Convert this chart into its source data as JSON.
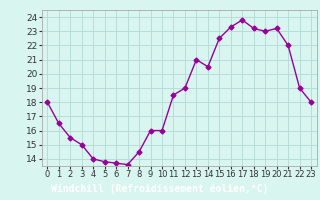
{
  "hours": [
    0,
    1,
    2,
    3,
    4,
    5,
    6,
    7,
    8,
    9,
    10,
    11,
    12,
    13,
    14,
    15,
    16,
    17,
    18,
    19,
    20,
    21,
    22,
    23
  ],
  "values": [
    18.0,
    16.5,
    15.5,
    15.0,
    14.0,
    13.8,
    13.7,
    13.6,
    14.5,
    16.0,
    16.0,
    18.5,
    19.0,
    21.0,
    20.5,
    22.5,
    23.3,
    23.8,
    23.2,
    23.0,
    23.2,
    22.0,
    19.0,
    18.0
  ],
  "line_color": "#990099",
  "marker": "D",
  "marker_size": 2.5,
  "bg_color": "#d8f5f0",
  "grid_color": "#b8ddd8",
  "xlabel": "Windchill (Refroidissement éolien,°C)",
  "xlabel_color": "#ffffff",
  "xlabel_bg": "#7700aa",
  "ylabel_ticks": [
    14,
    15,
    16,
    17,
    18,
    19,
    20,
    21,
    22,
    23,
    24
  ],
  "xlim": [
    -0.5,
    23.5
  ],
  "ylim": [
    13.5,
    24.5
  ],
  "tick_fontsize": 6.5,
  "label_fontsize": 7.0
}
